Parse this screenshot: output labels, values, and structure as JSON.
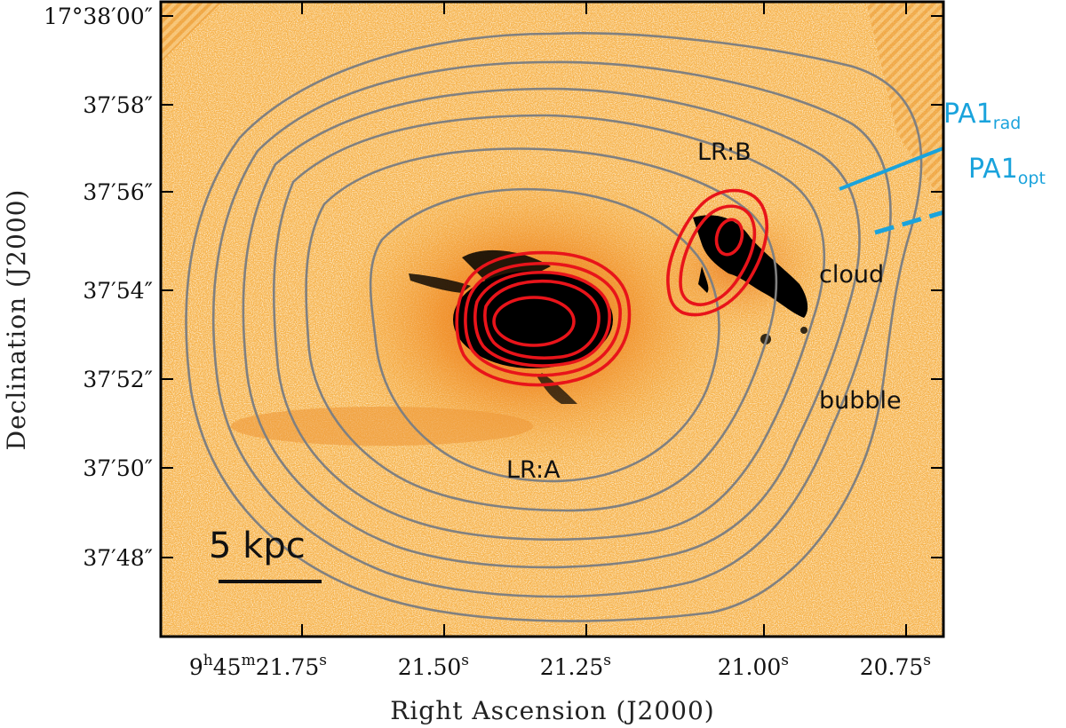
{
  "figure": {
    "xlabel": "Right Ascension (J2000)",
    "ylabel": "Declination (J2000)",
    "x_ticks": [
      {
        "pre": "9",
        "sup1": "h",
        "mid": "45",
        "sup2": "m",
        "main": "21.75",
        "sup3": "s"
      },
      {
        "main": "21.50",
        "sup3": "s"
      },
      {
        "main": "21.25",
        "sup3": "s"
      },
      {
        "main": "21.00",
        "sup3": "s"
      },
      {
        "main": "20.75",
        "sup3": "s"
      }
    ],
    "y_ticks": [
      "17°38′00″",
      "37′58″",
      "37′56″",
      "37′54″",
      "37′52″",
      "37′50″",
      "37′48″"
    ],
    "labels": {
      "lr_a": "LR:A",
      "lr_b": "LR:B",
      "cloud": "cloud",
      "bubble": "bubble",
      "pa1_rad_main": "PA1",
      "pa1_rad_sub": "rad",
      "pa1_opt_main": "PA1",
      "pa1_opt_sub": "opt",
      "scale_bar": "5 kpc"
    },
    "colors": {
      "background_image": "#f6b24a",
      "radio_contour": "#e8141a",
      "gray_contour": "#808080",
      "position_angle": "#1aa3dc",
      "galaxy_core": "#000000"
    }
  }
}
